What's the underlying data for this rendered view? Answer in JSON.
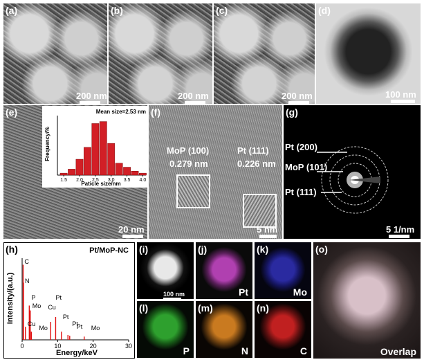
{
  "panels": {
    "a": {
      "label": "(a)",
      "scale": "200 nm"
    },
    "b": {
      "label": "(b)",
      "scale": "200 nm"
    },
    "c": {
      "label": "(c)",
      "scale": "200 nm"
    },
    "d": {
      "label": "(d)",
      "scale": "100 nm"
    },
    "e": {
      "label": "(e)",
      "scale": "20 nm"
    },
    "f": {
      "label": "(f)",
      "scale": "5 nm",
      "ann1": {
        "name": "MoP (100)",
        "d": "0.279 nm"
      },
      "ann2": {
        "name": "Pt (111)",
        "d": "0.226 nm"
      }
    },
    "g": {
      "label": "(g)",
      "scale": "5 1/nm",
      "rings": [
        "Pt (200)",
        "MoP (101)",
        "Pt (111)"
      ]
    },
    "h": {
      "label": "(h)",
      "title": "Pt/MoP-NC"
    },
    "i": {
      "label": "(i)",
      "scale": "100 nm"
    },
    "j": {
      "label": "(j)",
      "element": "Pt"
    },
    "k": {
      "label": "(k)",
      "element": "Mo"
    },
    "l": {
      "label": "(l)",
      "element": "P"
    },
    "m": {
      "label": "(m)",
      "element": "N"
    },
    "n": {
      "label": "(n)",
      "element": "C"
    },
    "o": {
      "label": "(o)",
      "element": "Overlap"
    }
  },
  "colors": {
    "Pt": "#b040b0",
    "Mo": "#2a2aa0",
    "P": "#2ea02e",
    "N": "#c97a20",
    "C": "#c02020"
  },
  "chart_data": [
    {
      "type": "bar",
      "title": "Mean size=2.53 nm",
      "xlabel": "Paticle size/nm",
      "ylabel": "Frequency/%",
      "xlim": [
        1.3,
        4.1
      ],
      "xticks": [
        "1.5",
        "2.0",
        "2.5",
        "3.0",
        "3.5",
        "4.0"
      ],
      "x": [
        1.5,
        1.75,
        2.0,
        2.25,
        2.5,
        2.75,
        3.0,
        3.25,
        3.5,
        3.75,
        4.0
      ],
      "values": [
        1,
        3,
        8,
        14,
        26,
        27,
        16,
        6,
        4,
        2,
        1
      ]
    },
    {
      "type": "line",
      "title": "Pt/MoP-NC",
      "xlabel": "Energy/keV",
      "ylabel": "Intensity/(a.u.)",
      "xlim": [
        0,
        30
      ],
      "xticks": [
        "0",
        "10",
        "20",
        "30"
      ],
      "peaks": [
        {
          "label": "C",
          "x": 0.28
        },
        {
          "label": "N",
          "x": 0.39
        },
        {
          "label": "P",
          "x": 2.01
        },
        {
          "label": "Mo",
          "x": 2.29
        },
        {
          "label": "Cu",
          "x": 0.93
        },
        {
          "label": "Mo",
          "x": 2.6
        },
        {
          "label": "Cu",
          "x": 8.05
        },
        {
          "label": "Pt",
          "x": 9.44
        },
        {
          "label": "Pt",
          "x": 11.07
        },
        {
          "label": "Pt",
          "x": 12.9
        },
        {
          "label": "Pt",
          "x": 13.4
        },
        {
          "label": "Mo",
          "x": 17.48
        }
      ]
    }
  ]
}
